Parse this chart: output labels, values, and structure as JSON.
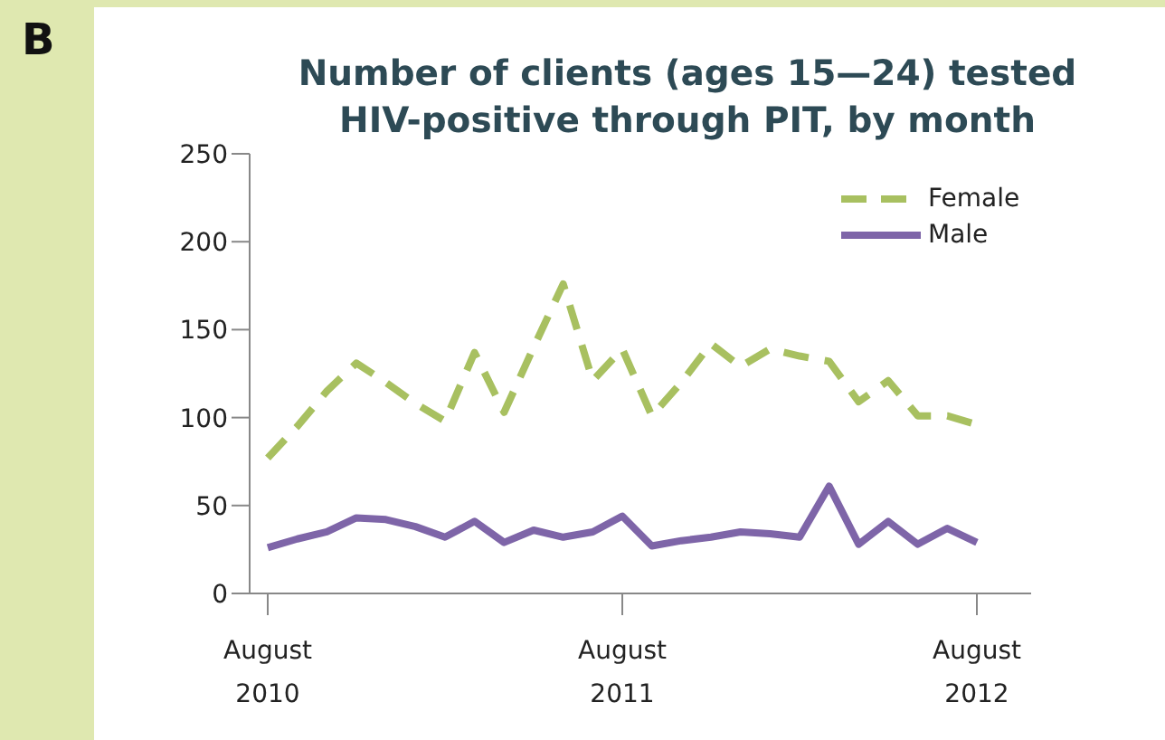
{
  "chart_data": {
    "type": "line",
    "title": "Number of clients (ages 15—24) tested\nHIV-positive through PIT, by month",
    "annotations": [
      "B"
    ],
    "categories": [
      "August 2010",
      null,
      null,
      null,
      null,
      null,
      null,
      null,
      null,
      null,
      null,
      null,
      "August 2011",
      null,
      null,
      null,
      null,
      null,
      null,
      null,
      null,
      null,
      null,
      null,
      "August 2012"
    ],
    "series": [
      {
        "name": "Female",
        "color": "#a8c060",
        "line_style": "dashed",
        "values": [
          77,
          95,
          115,
          131,
          120,
          108,
          98,
          137,
          103,
          140,
          176,
          121,
          139,
          101,
          120,
          142,
          129,
          139,
          135,
          132,
          109,
          121,
          101,
          101,
          96
        ]
      },
      {
        "name": "Male",
        "color": "#7e65a8",
        "line_style": "solid",
        "values": [
          26,
          31,
          35,
          43,
          42,
          38,
          32,
          41,
          29,
          36,
          32,
          35,
          44,
          27,
          30,
          32,
          35,
          34,
          32,
          61,
          28,
          41,
          28,
          37,
          29
        ]
      }
    ],
    "ylim": [
      0,
      250
    ],
    "yticks": [
      0,
      50,
      100,
      150,
      200,
      250
    ],
    "legend": "top right",
    "marker": "none"
  }
}
